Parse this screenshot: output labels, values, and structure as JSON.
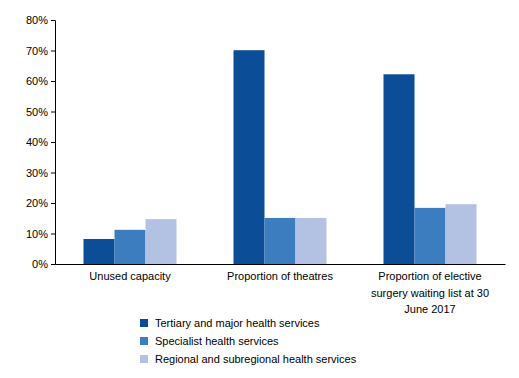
{
  "chart_data": {
    "type": "bar",
    "categories": [
      "Unused capacity",
      "Proportion of theatres",
      "Proportion of elective surgery waiting list at 30 June 2017"
    ],
    "series": [
      {
        "name": "Tertiary and major health services",
        "color": "#0b4d97",
        "values": [
          8.2,
          70.1,
          62.2
        ]
      },
      {
        "name": "Specialist health services",
        "color": "#3c7dc0",
        "values": [
          11.2,
          15.1,
          18.4
        ]
      },
      {
        "name": "Regional and subregional health services",
        "color": "#b3c2e2",
        "values": [
          14.7,
          15.1,
          19.6
        ]
      }
    ],
    "ylim": [
      0,
      80
    ],
    "yticks": [
      {
        "value": 0,
        "label": "0%"
      },
      {
        "value": 10,
        "label": "10%"
      },
      {
        "value": 20,
        "label": "20%"
      },
      {
        "value": 30,
        "label": "30%"
      },
      {
        "value": 40,
        "label": "40%"
      },
      {
        "value": 50,
        "label": "50%"
      },
      {
        "value": 60,
        "label": "60%"
      },
      {
        "value": 70,
        "label": "70%"
      },
      {
        "value": 80,
        "label": "80%"
      }
    ],
    "grid": false,
    "legend": "bottom"
  }
}
